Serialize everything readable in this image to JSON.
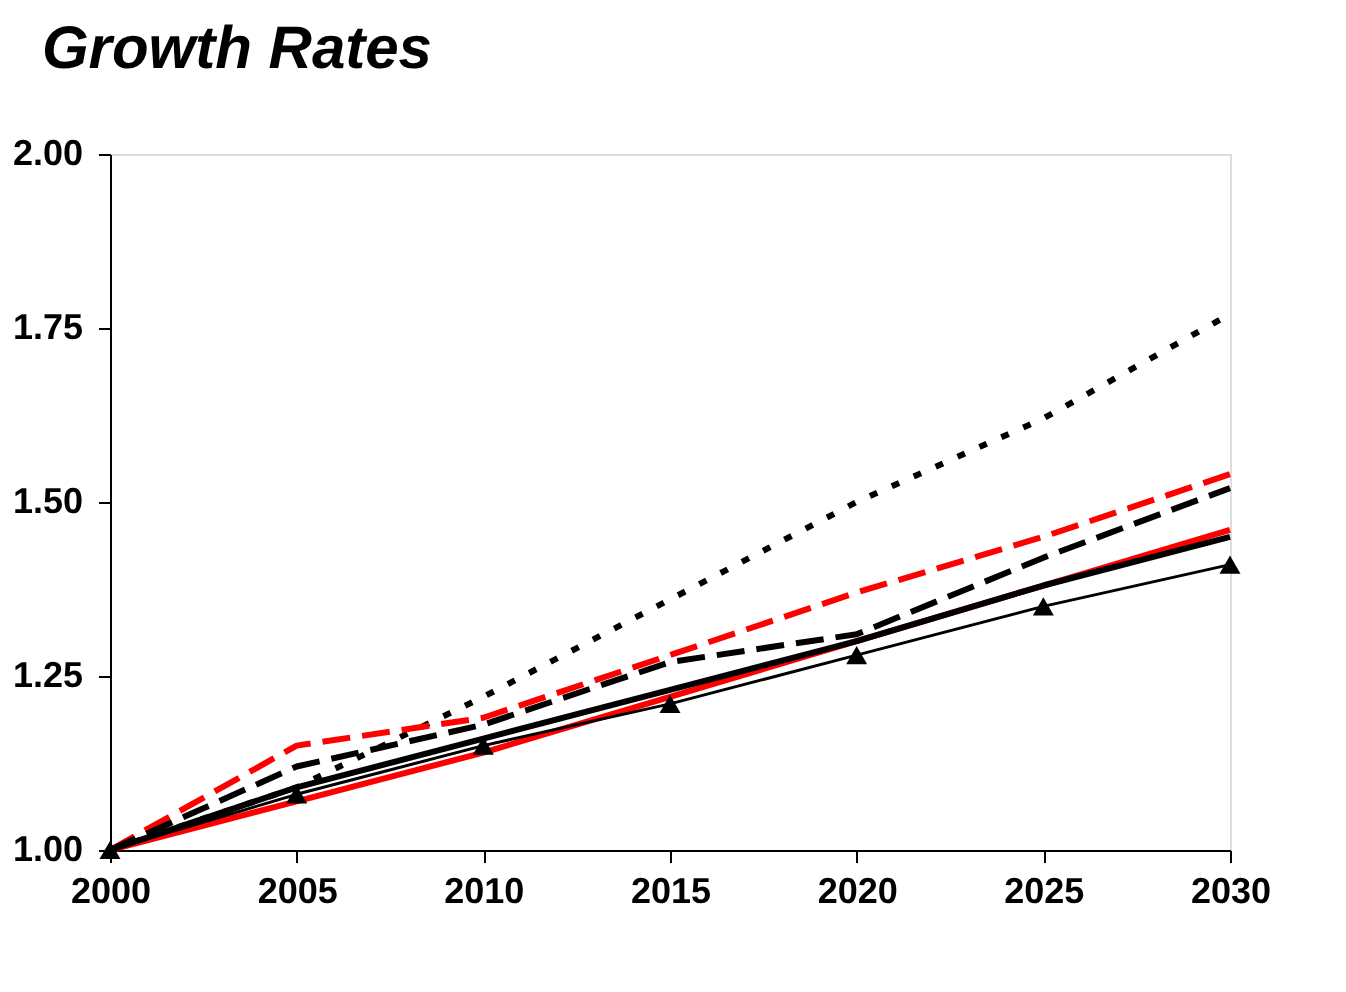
{
  "chart_data": {
    "type": "line",
    "title": "Growth Rates",
    "x": [
      2000,
      2005,
      2010,
      2015,
      2020,
      2025,
      2030
    ],
    "series": [
      {
        "color": "#000000",
        "line_style": "dotted",
        "marker": "none",
        "values": [
          1.0,
          1.09,
          1.22,
          1.36,
          1.5,
          1.62,
          1.77
        ]
      },
      {
        "color": "#ff0000",
        "line_style": "dashed",
        "marker": "none",
        "values": [
          1.0,
          1.15,
          1.19,
          1.28,
          1.37,
          1.45,
          1.54
        ]
      },
      {
        "color": "#000000",
        "line_style": "dashed",
        "marker": "none",
        "values": [
          1.0,
          1.12,
          1.18,
          1.27,
          1.31,
          1.42,
          1.52
        ]
      },
      {
        "color": "#ff0000",
        "line_style": "solid",
        "marker": "none",
        "values": [
          1.0,
          1.07,
          1.14,
          1.22,
          1.3,
          1.38,
          1.46
        ]
      },
      {
        "color": "#000000",
        "line_style": "solid",
        "marker": "none",
        "values": [
          1.0,
          1.09,
          1.16,
          1.23,
          1.3,
          1.38,
          1.45
        ]
      },
      {
        "color": "#000000",
        "line_style": "solid",
        "marker": "triangle",
        "values": [
          1.0,
          1.08,
          1.15,
          1.21,
          1.28,
          1.35,
          1.41
        ]
      }
    ],
    "xlim": [
      2000,
      2030
    ],
    "xticks": [
      2000,
      2005,
      2010,
      2015,
      2020,
      2025,
      2030
    ],
    "ylim": [
      1.0,
      2.0
    ],
    "yticks": [
      {
        "value": 1.0,
        "label": "1.00"
      },
      {
        "value": 1.25,
        "label": "1.25"
      },
      {
        "value": 1.5,
        "label": "1.50"
      },
      {
        "value": 1.75,
        "label": "1.75"
      },
      {
        "value": 2.0,
        "label": "2.00"
      }
    ],
    "grid": false
  }
}
